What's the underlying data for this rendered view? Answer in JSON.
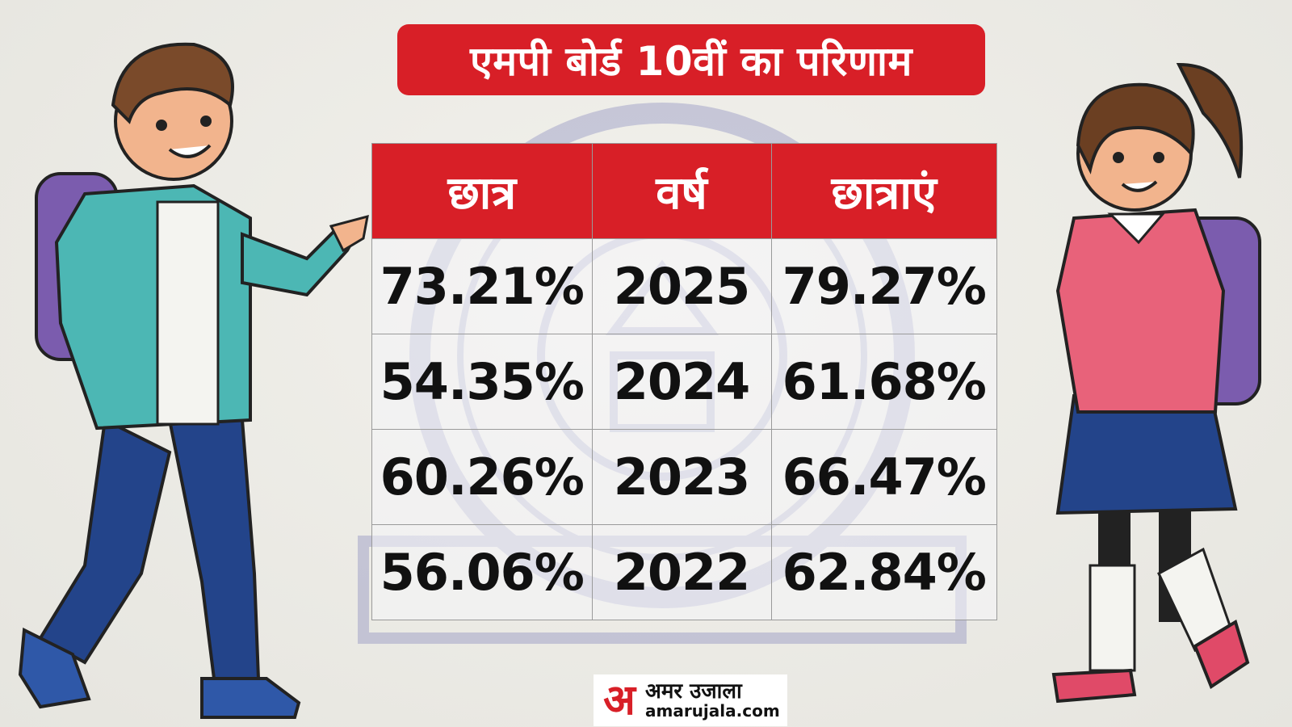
{
  "title": "एमपी बोर्ड 10वीं का परिणाम",
  "table": {
    "headers": [
      "छात्र",
      "वर्ष",
      "छात्राएं"
    ],
    "rows": [
      {
        "boys": "73.21%",
        "year": "2025",
        "girls": "79.27%"
      },
      {
        "boys": "54.35%",
        "year": "2024",
        "girls": "61.68%"
      },
      {
        "boys": "60.26%",
        "year": "2023",
        "girls": "66.47%"
      },
      {
        "boys": "56.06%",
        "year": "2022",
        "girls": "62.84%"
      }
    ]
  },
  "logo": {
    "mark": "अ",
    "hindi": "अमर उजाला",
    "english": "amarujala.com"
  },
  "colors": {
    "accent": "#d81f27",
    "background": "#ecebe6"
  },
  "illustrations": [
    "boy-student-with-backpack",
    "girl-student-with-backpack",
    "mp-board-seal-watermark"
  ]
}
